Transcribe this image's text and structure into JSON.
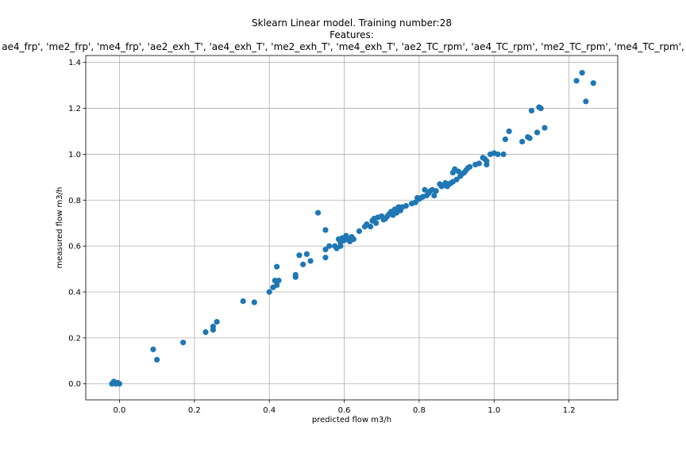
{
  "chart_data": {
    "type": "scatter",
    "title": "Sklearn Linear model. Training number:28",
    "subtitle": "Features:",
    "features_line": "ae4_frp', 'me2_frp', 'me4_frp', 'ae2_exh_T', 'ae4_exh_T', 'me2_exh_T', 'me4_exh_T', 'ae2_TC_rpm', 'ae4_TC_rpm', 'me2_TC_rpm', 'me4_TC_rpm',",
    "xlabel": "predicted flow m3/h",
    "ylabel": "measured flow m3/h",
    "xlim": [
      -0.09,
      1.33
    ],
    "ylim": [
      -0.07,
      1.43
    ],
    "xticks": [
      "0.0",
      "0.2",
      "0.4",
      "0.6",
      "0.8",
      "1.0",
      "1.2"
    ],
    "yticks": [
      "0.0",
      "0.2",
      "0.4",
      "0.6",
      "0.8",
      "1.0",
      "1.2",
      "1.4"
    ],
    "grid": true,
    "marker_color": "#1f77b4",
    "points": [
      [
        -0.02,
        0.0
      ],
      [
        -0.015,
        0.01
      ],
      [
        -0.01,
        0.0
      ],
      [
        -0.005,
        0.005
      ],
      [
        0.0,
        0.0
      ],
      [
        -0.012,
        0.005
      ],
      [
        0.09,
        0.15
      ],
      [
        0.1,
        0.105
      ],
      [
        0.17,
        0.18
      ],
      [
        0.23,
        0.225
      ],
      [
        0.25,
        0.235
      ],
      [
        0.25,
        0.25
      ],
      [
        0.26,
        0.27
      ],
      [
        0.33,
        0.36
      ],
      [
        0.36,
        0.355
      ],
      [
        0.4,
        0.4
      ],
      [
        0.41,
        0.42
      ],
      [
        0.42,
        0.43
      ],
      [
        0.415,
        0.45
      ],
      [
        0.425,
        0.45
      ],
      [
        0.42,
        0.51
      ],
      [
        0.47,
        0.465
      ],
      [
        0.47,
        0.475
      ],
      [
        0.48,
        0.56
      ],
      [
        0.49,
        0.52
      ],
      [
        0.5,
        0.565
      ],
      [
        0.51,
        0.535
      ],
      [
        0.53,
        0.745
      ],
      [
        0.55,
        0.55
      ],
      [
        0.55,
        0.585
      ],
      [
        0.56,
        0.6
      ],
      [
        0.55,
        0.67
      ],
      [
        0.575,
        0.6
      ],
      [
        0.58,
        0.59
      ],
      [
        0.585,
        0.63
      ],
      [
        0.59,
        0.6
      ],
      [
        0.59,
        0.615
      ],
      [
        0.595,
        0.635
      ],
      [
        0.6,
        0.625
      ],
      [
        0.605,
        0.645
      ],
      [
        0.61,
        0.63
      ],
      [
        0.615,
        0.62
      ],
      [
        0.62,
        0.64
      ],
      [
        0.625,
        0.63
      ],
      [
        0.64,
        0.665
      ],
      [
        0.655,
        0.685
      ],
      [
        0.66,
        0.695
      ],
      [
        0.67,
        0.685
      ],
      [
        0.675,
        0.71
      ],
      [
        0.68,
        0.72
      ],
      [
        0.685,
        0.7
      ],
      [
        0.69,
        0.725
      ],
      [
        0.7,
        0.73
      ],
      [
        0.705,
        0.715
      ],
      [
        0.71,
        0.72
      ],
      [
        0.715,
        0.73
      ],
      [
        0.72,
        0.74
      ],
      [
        0.725,
        0.75
      ],
      [
        0.73,
        0.735
      ],
      [
        0.735,
        0.76
      ],
      [
        0.74,
        0.745
      ],
      [
        0.745,
        0.77
      ],
      [
        0.75,
        0.755
      ],
      [
        0.755,
        0.77
      ],
      [
        0.765,
        0.775
      ],
      [
        0.78,
        0.785
      ],
      [
        0.79,
        0.79
      ],
      [
        0.795,
        0.81
      ],
      [
        0.8,
        0.805
      ],
      [
        0.805,
        0.81
      ],
      [
        0.81,
        0.815
      ],
      [
        0.815,
        0.845
      ],
      [
        0.82,
        0.82
      ],
      [
        0.825,
        0.83
      ],
      [
        0.83,
        0.84
      ],
      [
        0.835,
        0.845
      ],
      [
        0.84,
        0.82
      ],
      [
        0.845,
        0.84
      ],
      [
        0.855,
        0.87
      ],
      [
        0.86,
        0.86
      ],
      [
        0.865,
        0.865
      ],
      [
        0.87,
        0.875
      ],
      [
        0.875,
        0.86
      ],
      [
        0.88,
        0.87
      ],
      [
        0.885,
        0.875
      ],
      [
        0.89,
        0.88
      ],
      [
        0.89,
        0.92
      ],
      [
        0.895,
        0.935
      ],
      [
        0.9,
        0.89
      ],
      [
        0.905,
        0.925
      ],
      [
        0.91,
        0.905
      ],
      [
        0.915,
        0.915
      ],
      [
        0.92,
        0.92
      ],
      [
        0.925,
        0.93
      ],
      [
        0.93,
        0.94
      ],
      [
        0.935,
        0.945
      ],
      [
        0.95,
        0.955
      ],
      [
        0.96,
        0.96
      ],
      [
        0.97,
        0.985
      ],
      [
        0.975,
        0.98
      ],
      [
        0.98,
        0.97
      ],
      [
        0.98,
        0.955
      ],
      [
        0.99,
        1.0
      ],
      [
        1.0,
        1.005
      ],
      [
        1.01,
        1.0
      ],
      [
        1.025,
        1.0
      ],
      [
        1.03,
        1.065
      ],
      [
        1.04,
        1.1
      ],
      [
        1.075,
        1.055
      ],
      [
        1.09,
        1.075
      ],
      [
        1.095,
        1.07
      ],
      [
        1.1,
        1.19
      ],
      [
        1.115,
        1.095
      ],
      [
        1.12,
        1.205
      ],
      [
        1.125,
        1.2
      ],
      [
        1.135,
        1.115
      ],
      [
        1.22,
        1.32
      ],
      [
        1.235,
        1.355
      ],
      [
        1.245,
        1.23
      ],
      [
        1.265,
        1.31
      ]
    ]
  }
}
